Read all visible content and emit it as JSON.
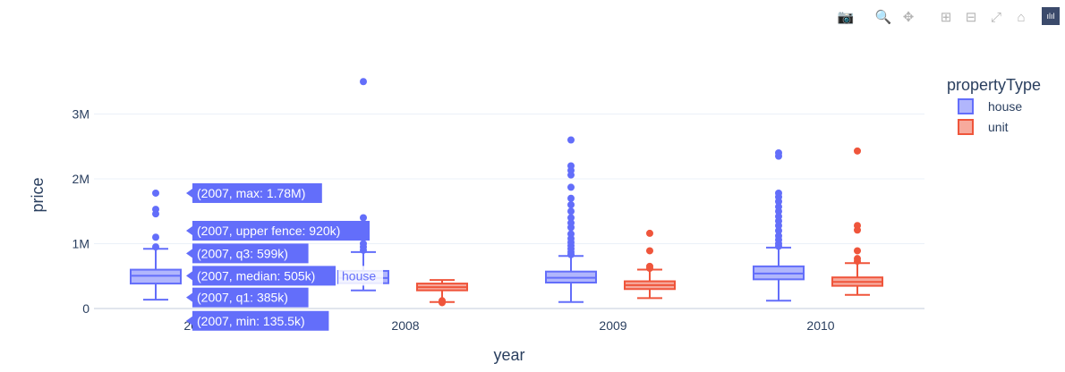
{
  "modebar": {
    "buttons": [
      {
        "name": "camera-icon",
        "glyph": "📷"
      },
      {
        "name": "zoom-icon",
        "glyph": "🔍"
      },
      {
        "name": "pan-icon",
        "glyph": "✥"
      },
      {
        "name": "zoom-in-icon",
        "glyph": "⊞"
      },
      {
        "name": "zoom-out-icon",
        "glyph": "⊟"
      },
      {
        "name": "autoscale-icon",
        "glyph": "⤢"
      },
      {
        "name": "reset-axes-icon",
        "glyph": "⌂"
      }
    ],
    "logo_glyph": "ılıl"
  },
  "chart_data": {
    "type": "box",
    "xlabel": "year",
    "ylabel": "price",
    "categories": [
      "2007",
      "2008",
      "2009",
      "2010"
    ],
    "ylim": [
      -150000,
      3700000
    ],
    "yticks": [
      0,
      1000000,
      2000000,
      3000000
    ],
    "ytick_labels": [
      "0",
      "1M",
      "2M",
      "3M"
    ],
    "legend": {
      "title": "propertyType",
      "placement": "top-right"
    },
    "series": [
      {
        "name": "house",
        "color": "#636efa",
        "boxes": [
          {
            "x": "2007",
            "min": 135500,
            "q1": 385000,
            "median": 505000,
            "q3": 599000,
            "upper_fence": 920000,
            "max": 1780000,
            "outliers": [
              950000,
              1100000,
              1460000,
              1530000,
              1780000
            ]
          },
          {
            "x": "2008",
            "min": 280000,
            "q1": 390000,
            "median": 470000,
            "q3": 580000,
            "upper_fence": 870000,
            "outliers": [
              900000,
              950000,
              1000000,
              1100000,
              1200000,
              1300000,
              1400000,
              3500000
            ]
          },
          {
            "x": "2009",
            "min": 100000,
            "q1": 400000,
            "median": 475000,
            "q3": 570000,
            "upper_fence": 810000,
            "outliers": [
              830000,
              870000,
              920000,
              970000,
              1020000,
              1080000,
              1150000,
              1250000,
              1320000,
              1400000,
              1500000,
              1600000,
              1700000,
              1870000,
              2060000,
              2130000,
              2200000,
              2600000
            ]
          },
          {
            "x": "2010",
            "min": 120000,
            "q1": 450000,
            "median": 540000,
            "q3": 650000,
            "upper_fence": 940000,
            "outliers": [
              960000,
              1000000,
              1060000,
              1120000,
              1200000,
              1280000,
              1350000,
              1420000,
              1500000,
              1570000,
              1650000,
              1720000,
              1780000,
              2350000,
              2400000
            ]
          }
        ]
      },
      {
        "name": "unit",
        "color": "#ef553b",
        "boxes": [
          {
            "x": "2008",
            "min": 100000,
            "q1": 280000,
            "median": 330000,
            "q3": 385000,
            "upper_fence": 440000,
            "outliers": [
              90000,
              120000
            ]
          },
          {
            "x": "2009",
            "min": 160000,
            "q1": 300000,
            "median": 360000,
            "q3": 420000,
            "upper_fence": 600000,
            "outliers": [
              620000,
              650000,
              890000,
              1160000
            ]
          },
          {
            "x": "2010",
            "min": 210000,
            "q1": 350000,
            "median": 410000,
            "q3": 480000,
            "upper_fence": 700000,
            "outliers": [
              730000,
              770000,
              890000,
              1210000,
              1280000,
              2430000
            ]
          }
        ]
      }
    ],
    "tooltips": [
      {
        "text": "(2007, max: 1.78M)",
        "value": 1780000
      },
      {
        "text": "(2007, upper fence: 920k)",
        "value": 1200000
      },
      {
        "text": "(2007, q3: 599k)",
        "value": 850000
      },
      {
        "text": "(2007, median: 505k)",
        "value": 505000
      },
      {
        "text": "(2007, q1: 385k)",
        "value": 170000
      },
      {
        "text": "(2007, min: 135.5k)",
        "value": -190000
      }
    ],
    "hover_trace_label": "house"
  }
}
